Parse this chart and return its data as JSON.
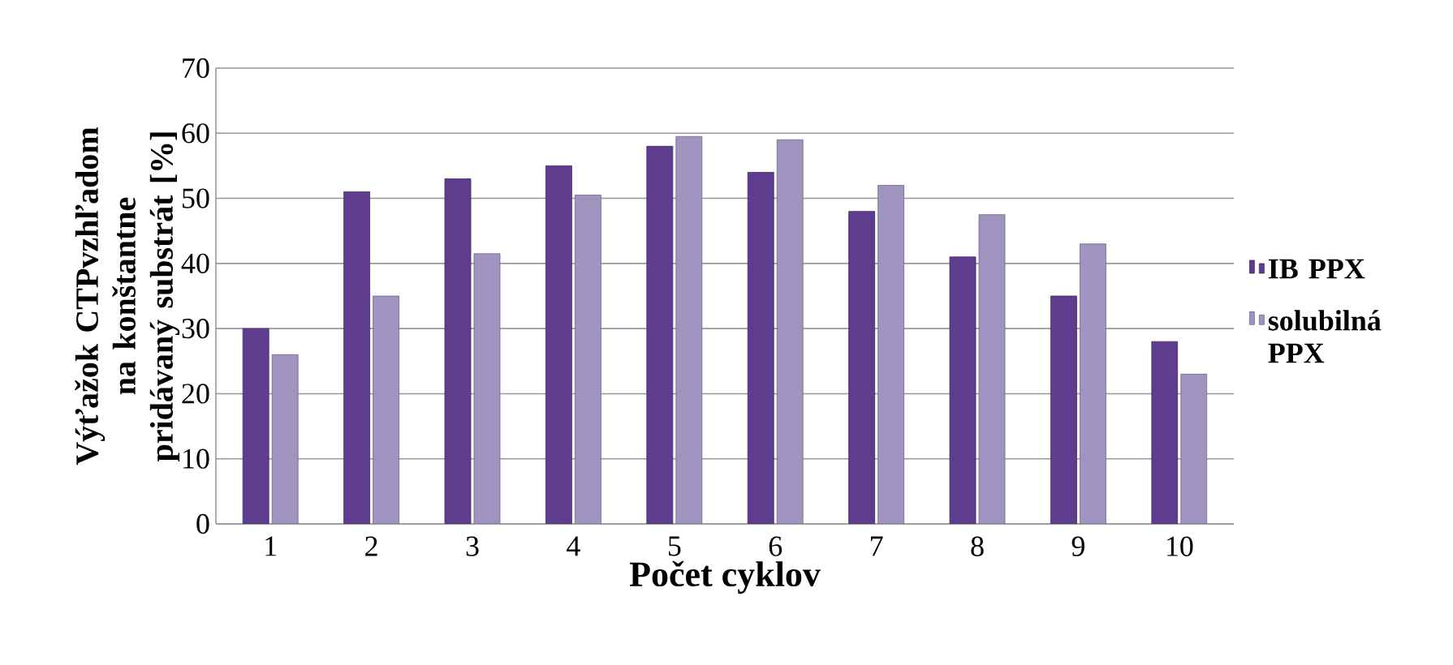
{
  "chart_data": {
    "type": "bar",
    "xlabel": "Počet cyklov",
    "ylabel": "Výťažok CTPvzhľadom na konštantne pridávaný substrát [%]",
    "categories": [
      "1",
      "2",
      "3",
      "4",
      "5",
      "6",
      "7",
      "8",
      "9",
      "10"
    ],
    "series": [
      {
        "name": "IB PPX",
        "color": "#5e3c8e",
        "values": [
          30,
          51,
          53,
          55,
          58,
          54,
          48,
          41,
          35,
          28
        ]
      },
      {
        "name": "solubilná PPX",
        "color": "#a093c0",
        "values": [
          26,
          35,
          41.5,
          50.5,
          59.5,
          59,
          52,
          47.5,
          43,
          23
        ]
      }
    ],
    "ylim": [
      0,
      70
    ],
    "yticks": [
      0,
      10,
      20,
      30,
      40,
      50,
      60,
      70
    ],
    "grid": "y",
    "legend": "right"
  }
}
